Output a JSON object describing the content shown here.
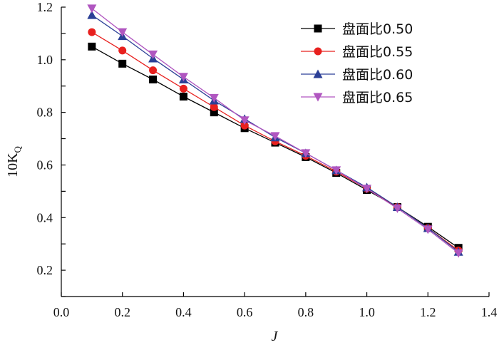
{
  "chart_data": {
    "type": "line",
    "xlabel": "J",
    "ylabel": "10K",
    "ylabel_sub": "Q",
    "xlim": [
      0.0,
      1.4
    ],
    "ylim": [
      0.1,
      1.2
    ],
    "x_ticks": [
      "0.0",
      "0.2",
      "0.4",
      "0.6",
      "0.8",
      "1.0",
      "1.2",
      "1.4"
    ],
    "y_ticks": [
      "0.2",
      "0.4",
      "0.6",
      "0.8",
      "1.0",
      "1.2"
    ],
    "grid": false,
    "legend_position": "top-right",
    "x": [
      0.1,
      0.2,
      0.3,
      0.4,
      0.5,
      0.6,
      0.7,
      0.8,
      0.9,
      1.0,
      1.1,
      1.2,
      1.3
    ],
    "series": [
      {
        "name": "盘面比0.50",
        "color": "#000000",
        "marker": "square",
        "values": [
          1.05,
          0.985,
          0.925,
          0.86,
          0.8,
          0.74,
          0.685,
          0.63,
          0.57,
          0.505,
          0.44,
          0.365,
          0.285
        ]
      },
      {
        "name": "盘面比0.55",
        "color": "#e8201e",
        "marker": "circle",
        "values": [
          1.105,
          1.035,
          0.96,
          0.89,
          0.82,
          0.75,
          0.69,
          0.635,
          0.575,
          0.51,
          0.44,
          0.36,
          0.275
        ]
      },
      {
        "name": "盘面比0.60",
        "color": "#2b3f96",
        "marker": "triangle-up",
        "values": [
          1.17,
          1.09,
          1.005,
          0.925,
          0.845,
          0.775,
          0.705,
          0.645,
          0.58,
          0.515,
          0.44,
          0.36,
          0.27
        ]
      },
      {
        "name": "盘面比0.65",
        "color": "#b056c0",
        "marker": "triangle-down",
        "values": [
          1.195,
          1.105,
          1.02,
          0.935,
          0.855,
          0.77,
          0.71,
          0.645,
          0.58,
          0.51,
          0.435,
          0.355,
          0.265
        ]
      }
    ]
  }
}
